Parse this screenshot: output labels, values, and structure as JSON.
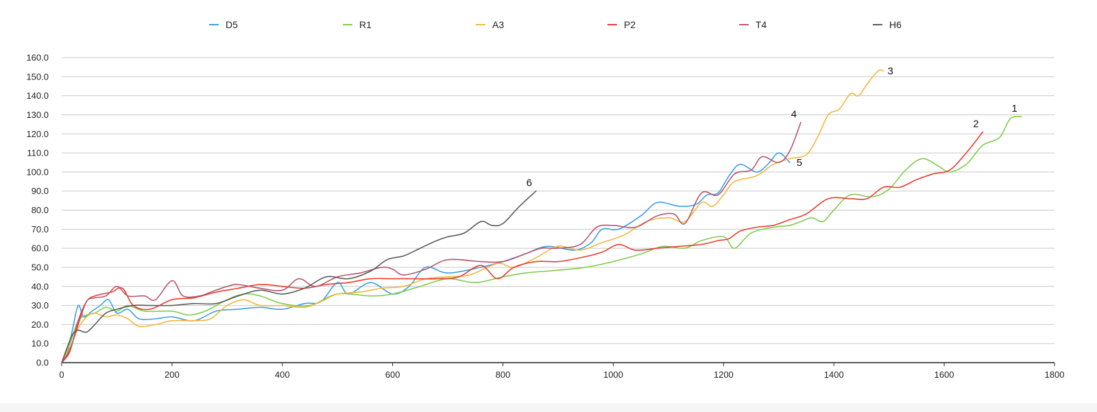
{
  "chart_data": {
    "type": "line",
    "xlim": [
      0,
      1800
    ],
    "ylim": [
      0,
      160
    ],
    "x_ticks": [
      0,
      200,
      400,
      600,
      800,
      1000,
      1200,
      1400,
      1600,
      1800
    ],
    "y_ticks": [
      "0.0",
      "10.0",
      "20.0",
      "30.0",
      "40.0",
      "50.0",
      "60.0",
      "70.0",
      "80.0",
      "90.0",
      "100.0",
      "110.0",
      "120.0",
      "130.0",
      "140.0",
      "150.0",
      "160.0"
    ],
    "grid": "horizontal",
    "legend_position": "top",
    "series": [
      {
        "name": "D5",
        "color": "#3b9ee8",
        "end_label": "5",
        "points": [
          [
            0,
            0
          ],
          [
            10,
            5
          ],
          [
            20,
            18
          ],
          [
            30,
            30
          ],
          [
            40,
            24
          ],
          [
            55,
            27
          ],
          [
            70,
            30
          ],
          [
            85,
            33
          ],
          [
            100,
            26
          ],
          [
            120,
            28
          ],
          [
            140,
            23
          ],
          [
            170,
            23
          ],
          [
            200,
            24
          ],
          [
            240,
            22
          ],
          [
            280,
            27
          ],
          [
            320,
            28
          ],
          [
            360,
            29
          ],
          [
            400,
            28
          ],
          [
            440,
            31
          ],
          [
            470,
            32
          ],
          [
            500,
            42
          ],
          [
            520,
            36
          ],
          [
            560,
            42
          ],
          [
            600,
            36
          ],
          [
            630,
            40
          ],
          [
            660,
            50
          ],
          [
            700,
            47
          ],
          [
            760,
            50
          ],
          [
            800,
            53
          ],
          [
            840,
            57
          ],
          [
            880,
            61
          ],
          [
            930,
            59
          ],
          [
            960,
            63
          ],
          [
            980,
            70
          ],
          [
            1010,
            70
          ],
          [
            1050,
            77
          ],
          [
            1080,
            84
          ],
          [
            1120,
            82
          ],
          [
            1150,
            83
          ],
          [
            1170,
            88
          ],
          [
            1190,
            89
          ],
          [
            1210,
            98
          ],
          [
            1230,
            104
          ],
          [
            1260,
            100
          ],
          [
            1280,
            104
          ],
          [
            1300,
            110
          ],
          [
            1320,
            105
          ]
        ]
      },
      {
        "name": "R1",
        "color": "#7fcc4c",
        "end_label": "1",
        "points": [
          [
            0,
            0
          ],
          [
            15,
            10
          ],
          [
            30,
            22
          ],
          [
            45,
            25
          ],
          [
            60,
            26
          ],
          [
            80,
            29
          ],
          [
            100,
            27
          ],
          [
            120,
            30
          ],
          [
            150,
            27
          ],
          [
            200,
            27
          ],
          [
            230,
            25
          ],
          [
            260,
            27
          ],
          [
            300,
            33
          ],
          [
            330,
            36
          ],
          [
            360,
            35
          ],
          [
            400,
            31
          ],
          [
            450,
            30
          ],
          [
            500,
            36
          ],
          [
            560,
            35
          ],
          [
            600,
            36
          ],
          [
            650,
            40
          ],
          [
            700,
            44
          ],
          [
            750,
            42
          ],
          [
            800,
            45
          ],
          [
            840,
            47
          ],
          [
            880,
            48
          ],
          [
            920,
            49
          ],
          [
            950,
            50
          ],
          [
            1000,
            53
          ],
          [
            1050,
            57
          ],
          [
            1090,
            61
          ],
          [
            1130,
            60
          ],
          [
            1160,
            64
          ],
          [
            1200,
            66
          ],
          [
            1220,
            60
          ],
          [
            1250,
            68
          ],
          [
            1290,
            71
          ],
          [
            1320,
            72
          ],
          [
            1340,
            74
          ],
          [
            1360,
            76
          ],
          [
            1380,
            74
          ],
          [
            1400,
            80
          ],
          [
            1430,
            88
          ],
          [
            1470,
            87
          ],
          [
            1500,
            91
          ],
          [
            1530,
            101
          ],
          [
            1560,
            107
          ],
          [
            1590,
            103
          ],
          [
            1610,
            100
          ],
          [
            1640,
            104
          ],
          [
            1670,
            114
          ],
          [
            1700,
            118
          ],
          [
            1720,
            128
          ],
          [
            1740,
            129
          ]
        ]
      },
      {
        "name": "A3",
        "color": "#f4b63a",
        "end_label": "3",
        "points": [
          [
            0,
            0
          ],
          [
            15,
            8
          ],
          [
            30,
            18
          ],
          [
            45,
            24
          ],
          [
            60,
            26
          ],
          [
            80,
            24
          ],
          [
            100,
            25
          ],
          [
            120,
            23
          ],
          [
            140,
            19
          ],
          [
            170,
            20
          ],
          [
            200,
            22
          ],
          [
            240,
            22
          ],
          [
            270,
            23
          ],
          [
            300,
            30
          ],
          [
            330,
            33
          ],
          [
            360,
            30
          ],
          [
            400,
            30
          ],
          [
            440,
            29
          ],
          [
            470,
            32
          ],
          [
            500,
            36
          ],
          [
            540,
            37
          ],
          [
            580,
            39
          ],
          [
            620,
            40
          ],
          [
            660,
            44
          ],
          [
            700,
            45
          ],
          [
            740,
            46
          ],
          [
            790,
            52
          ],
          [
            820,
            50
          ],
          [
            860,
            55
          ],
          [
            900,
            61
          ],
          [
            940,
            59
          ],
          [
            980,
            63
          ],
          [
            1020,
            67
          ],
          [
            1060,
            74
          ],
          [
            1100,
            76
          ],
          [
            1130,
            74
          ],
          [
            1160,
            84
          ],
          [
            1180,
            82
          ],
          [
            1200,
            88
          ],
          [
            1220,
            95
          ],
          [
            1260,
            98
          ],
          [
            1290,
            104
          ],
          [
            1320,
            107
          ],
          [
            1350,
            109
          ],
          [
            1370,
            118
          ],
          [
            1390,
            130
          ],
          [
            1410,
            133
          ],
          [
            1430,
            141
          ],
          [
            1445,
            140
          ],
          [
            1460,
            146
          ],
          [
            1480,
            153
          ],
          [
            1490,
            153
          ]
        ]
      },
      {
        "name": "P2",
        "color": "#ea3b2c",
        "end_label": "2",
        "points": [
          [
            0,
            0
          ],
          [
            15,
            6
          ],
          [
            30,
            22
          ],
          [
            45,
            32
          ],
          [
            60,
            35
          ],
          [
            90,
            37
          ],
          [
            110,
            39
          ],
          [
            130,
            30
          ],
          [
            160,
            28
          ],
          [
            200,
            33
          ],
          [
            240,
            34
          ],
          [
            280,
            37
          ],
          [
            320,
            39
          ],
          [
            360,
            41
          ],
          [
            400,
            40
          ],
          [
            440,
            39
          ],
          [
            480,
            41
          ],
          [
            520,
            42
          ],
          [
            560,
            44
          ],
          [
            600,
            44
          ],
          [
            640,
            44
          ],
          [
            680,
            44
          ],
          [
            720,
            45
          ],
          [
            760,
            51
          ],
          [
            790,
            44
          ],
          [
            820,
            50
          ],
          [
            860,
            53
          ],
          [
            900,
            53
          ],
          [
            940,
            55
          ],
          [
            980,
            58
          ],
          [
            1010,
            62
          ],
          [
            1040,
            59
          ],
          [
            1080,
            60
          ],
          [
            1120,
            61
          ],
          [
            1160,
            62
          ],
          [
            1190,
            64
          ],
          [
            1210,
            65
          ],
          [
            1230,
            69
          ],
          [
            1260,
            71
          ],
          [
            1290,
            72
          ],
          [
            1320,
            75
          ],
          [
            1350,
            78
          ],
          [
            1390,
            86
          ],
          [
            1430,
            86
          ],
          [
            1460,
            86
          ],
          [
            1490,
            92
          ],
          [
            1520,
            92
          ],
          [
            1550,
            96
          ],
          [
            1580,
            99
          ],
          [
            1610,
            101
          ],
          [
            1640,
            110
          ],
          [
            1670,
            121
          ]
        ]
      },
      {
        "name": "T4",
        "color": "#b5566f",
        "end_label": "4",
        "points": [
          [
            0,
            0
          ],
          [
            15,
            7
          ],
          [
            30,
            20
          ],
          [
            45,
            32
          ],
          [
            60,
            34
          ],
          [
            80,
            35
          ],
          [
            100,
            40
          ],
          [
            120,
            35
          ],
          [
            150,
            35
          ],
          [
            170,
            33
          ],
          [
            200,
            43
          ],
          [
            220,
            35
          ],
          [
            250,
            35
          ],
          [
            270,
            37
          ],
          [
            300,
            40
          ],
          [
            320,
            41
          ],
          [
            360,
            39
          ],
          [
            400,
            38
          ],
          [
            430,
            44
          ],
          [
            460,
            40
          ],
          [
            500,
            45
          ],
          [
            540,
            47
          ],
          [
            580,
            50
          ],
          [
            600,
            49
          ],
          [
            620,
            46
          ],
          [
            660,
            49
          ],
          [
            700,
            54
          ],
          [
            760,
            53
          ],
          [
            800,
            53
          ],
          [
            840,
            57
          ],
          [
            870,
            60
          ],
          [
            900,
            60
          ],
          [
            940,
            62
          ],
          [
            970,
            71
          ],
          [
            1000,
            72
          ],
          [
            1040,
            71
          ],
          [
            1080,
            77
          ],
          [
            1110,
            78
          ],
          [
            1130,
            73
          ],
          [
            1160,
            89
          ],
          [
            1190,
            88
          ],
          [
            1220,
            99
          ],
          [
            1250,
            101
          ],
          [
            1270,
            108
          ],
          [
            1300,
            105
          ],
          [
            1320,
            111
          ],
          [
            1340,
            126
          ]
        ]
      },
      {
        "name": "H6",
        "color": "#5a5a5a",
        "end_label": "6",
        "points": [
          [
            0,
            0
          ],
          [
            10,
            8
          ],
          [
            20,
            15
          ],
          [
            30,
            17
          ],
          [
            45,
            16
          ],
          [
            60,
            20
          ],
          [
            80,
            26
          ],
          [
            100,
            28
          ],
          [
            130,
            30
          ],
          [
            160,
            30
          ],
          [
            200,
            30
          ],
          [
            240,
            31
          ],
          [
            280,
            31
          ],
          [
            320,
            35
          ],
          [
            360,
            38
          ],
          [
            400,
            36
          ],
          [
            440,
            39
          ],
          [
            480,
            45
          ],
          [
            520,
            44
          ],
          [
            560,
            48
          ],
          [
            590,
            54
          ],
          [
            620,
            56
          ],
          [
            650,
            60
          ],
          [
            680,
            64
          ],
          [
            700,
            66
          ],
          [
            730,
            68
          ],
          [
            760,
            74
          ],
          [
            780,
            72
          ],
          [
            800,
            73
          ],
          [
            830,
            82
          ],
          [
            860,
            90
          ]
        ]
      }
    ]
  }
}
